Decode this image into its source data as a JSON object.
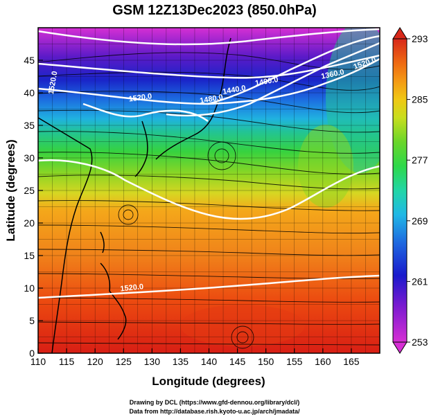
{
  "title": "GSM 12Z13Dec2023 (850.0hPa)",
  "xaxis": {
    "label": "Longitude (degrees)",
    "ticks": [
      "110",
      "115",
      "120",
      "125",
      "130",
      "135",
      "140",
      "145",
      "150",
      "155",
      "160",
      "165"
    ],
    "range": [
      110,
      170
    ]
  },
  "yaxis": {
    "label": "Latitude  (degrees)",
    "ticks": [
      "0",
      "5",
      "10",
      "15",
      "20",
      "25",
      "30",
      "35",
      "40",
      "45"
    ],
    "range": [
      0,
      50
    ]
  },
  "colorbar": {
    "ticks": [
      "293",
      "285",
      "277",
      "269",
      "261",
      "253"
    ],
    "range": [
      253,
      293
    ],
    "colors": [
      "#d62fd4",
      "#7a1ad0",
      "#1a1acc",
      "#1e6ae0",
      "#20b8e6",
      "#22d6a6",
      "#2ed84a",
      "#6ad62a",
      "#c8de1e",
      "#f0c814",
      "#f49a14",
      "#ee6a12",
      "#e43a12",
      "#d8281a"
    ]
  },
  "contour_labels": [
    {
      "text": "1520.0",
      "lon": 128,
      "lat": 38.9,
      "rot": -8
    },
    {
      "text": "1480.0",
      "lon": 140.5,
      "lat": 38.7,
      "rot": -10
    },
    {
      "text": "1440.0",
      "lon": 144.5,
      "lat": 40.1,
      "rot": -10
    },
    {
      "text": "1400.0",
      "lon": 150.2,
      "lat": 41.4,
      "rot": -10
    },
    {
      "text": "1360.0",
      "lon": 161.8,
      "lat": 42.5,
      "rot": -12
    },
    {
      "text": "1520.0",
      "lon": 113,
      "lat": 41.5,
      "rot": -80
    },
    {
      "text": "1520.0",
      "lon": 167.5,
      "lat": 44.2,
      "rot": -20
    },
    {
      "text": "1520.0",
      "lon": 126.5,
      "lat": 9.7,
      "rot": -6
    }
  ],
  "credits": [
    "Drawing by DCL (https://www.gfd-dennou.org/library/dcl/)",
    "Data from http://database.rish.kyoto-u.ac.jp/arch/jmadata/"
  ]
}
